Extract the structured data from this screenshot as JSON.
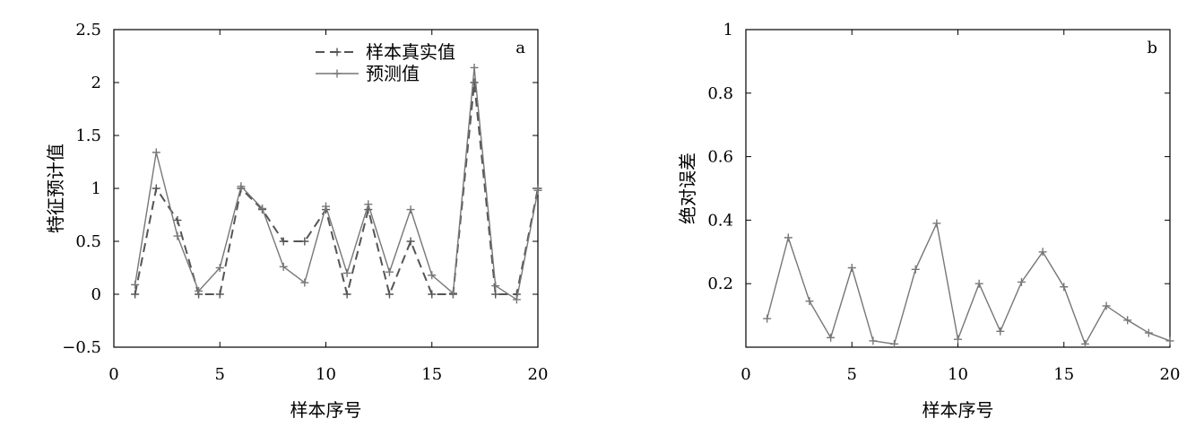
{
  "chart_data": [
    {
      "type": "line",
      "panel_label": "a",
      "title": "",
      "xlabel": "样本序号",
      "ylabel": "特征预计值",
      "xlim": [
        0,
        20
      ],
      "ylim": [
        -0.5,
        2.5
      ],
      "xticks": [
        0,
        5,
        10,
        15,
        20
      ],
      "yticks": [
        -0.5,
        0,
        0.5,
        1,
        1.5,
        2,
        2.5
      ],
      "xtick_labels": [
        "0",
        "5",
        "10",
        "15",
        "20"
      ],
      "ytick_labels": [
        "−0.5",
        "0",
        "0.5",
        "1",
        "1.5",
        "2",
        "2.5"
      ],
      "legend_position": "top-center",
      "x": [
        1,
        2,
        3,
        4,
        5,
        6,
        7,
        8,
        9,
        10,
        11,
        12,
        13,
        14,
        15,
        16,
        17,
        18,
        19,
        20
      ],
      "series": [
        {
          "name": "样本真实值",
          "style": "dashed",
          "color": "#555555",
          "values": [
            0,
            1,
            0.7,
            0,
            0,
            1,
            0.8,
            0.5,
            0.5,
            0.8,
            0,
            0.8,
            0,
            0.5,
            0,
            0,
            2,
            0,
            0,
            1
          ]
        },
        {
          "name": "预测值",
          "style": "solid",
          "color": "#777777",
          "values": [
            0.09,
            1.34,
            0.55,
            0.03,
            0.25,
            1.02,
            0.81,
            0.26,
            0.11,
            0.83,
            0.2,
            0.85,
            0.21,
            0.8,
            0.18,
            0.01,
            2.14,
            0.08,
            -0.05,
            0.98
          ]
        }
      ]
    },
    {
      "type": "line",
      "panel_label": "b",
      "title": "",
      "xlabel": "样本序号",
      "ylabel": "绝对误差",
      "xlim": [
        0,
        20
      ],
      "ylim": [
        0,
        1
      ],
      "xticks": [
        0,
        5,
        10,
        15,
        20
      ],
      "yticks": [
        0.2,
        0.4,
        0.6,
        0.8,
        1
      ],
      "xtick_labels": [
        "0",
        "5",
        "10",
        "15",
        "20"
      ],
      "ytick_labels": [
        "0.2",
        "0.4",
        "0.6",
        "0.8",
        "1"
      ],
      "x": [
        1,
        2,
        3,
        4,
        5,
        6,
        7,
        8,
        9,
        10,
        11,
        12,
        13,
        14,
        15,
        16,
        17,
        18,
        19,
        20
      ],
      "series": [
        {
          "name": "",
          "style": "solid",
          "color": "#777777",
          "values": [
            0.09,
            0.345,
            0.145,
            0.03,
            0.25,
            0.02,
            0.01,
            0.245,
            0.39,
            0.025,
            0.2,
            0.05,
            0.205,
            0.3,
            0.19,
            0.01,
            0.13,
            0.085,
            0.045,
            0.02
          ]
        }
      ]
    }
  ]
}
